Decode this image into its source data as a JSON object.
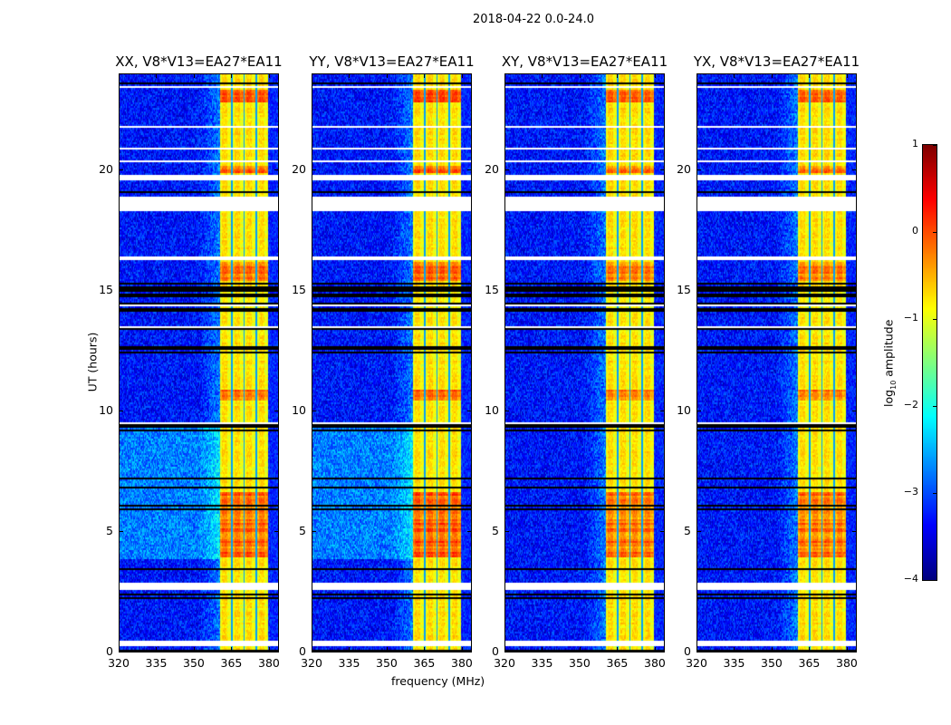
{
  "suptitle": "2018-04-22 0.0-24.0",
  "chart_data": {
    "type": "heatmap",
    "title": "2018-04-22 0.0-24.0",
    "xlabel": "frequency (MHz)",
    "ylabel": "UT (hours)",
    "xlim": [
      320,
      384
    ],
    "ylim": [
      0,
      24
    ],
    "xticks": [
      "320",
      "335",
      "350",
      "365",
      "380"
    ],
    "yticks": [
      "0",
      "5",
      "10",
      "15",
      "20"
    ],
    "panels": [
      {
        "title": "XX, V8*V13=EA27*EA11",
        "hot_gain": 1.0,
        "low_band_bright": true
      },
      {
        "title": "YY, V8*V13=EA27*EA11",
        "hot_gain": 1.15,
        "low_band_bright": true
      },
      {
        "title": "XY, V8*V13=EA27*EA11",
        "hot_gain": 0.85,
        "low_band_bright": false
      },
      {
        "title": "YX, V8*V13=EA27*EA11",
        "hot_gain": 0.85,
        "low_band_bright": false
      }
    ],
    "rfi_band_mhz": [
      360.5,
      380
    ],
    "subband_edges_mhz": [
      365.4,
      370.3,
      375.2
    ],
    "flagged_hours": [
      [
        0.25,
        0.45
      ],
      [
        2.55,
        2.85
      ],
      [
        16.25,
        16.4
      ],
      [
        18.3,
        18.85
      ],
      [
        19.55,
        19.8
      ],
      [
        21.75,
        21.85
      ]
    ],
    "dense_flag_hours": [
      [
        14.0,
        15.3
      ],
      [
        12.4,
        12.7
      ],
      [
        9.3,
        9.6
      ]
    ],
    "hot_hours": [
      [
        3.9,
        6.6
      ],
      [
        10.4,
        10.9
      ],
      [
        15.4,
        16.2
      ],
      [
        19.9,
        20.2
      ],
      [
        22.8,
        23.3
      ]
    ],
    "colorbar": {
      "label": "log10 amplitude",
      "label_base": "log",
      "label_sub": "10",
      "label_rest": " amplitude",
      "range": [
        -4,
        1
      ],
      "ticks": [
        "1",
        "0",
        "−1",
        "−2",
        "−3",
        "−4"
      ],
      "colormap": "jet"
    }
  }
}
